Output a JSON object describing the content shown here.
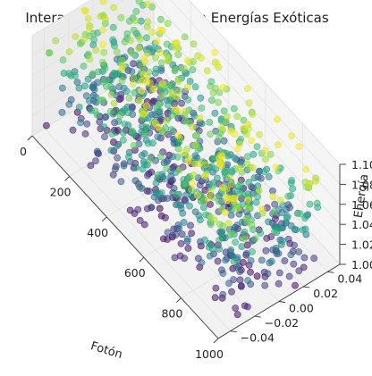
{
  "chart_data": {
    "type": "scatter",
    "projection": "3d",
    "title": "Interacción de Fotones con Energías Exóticas",
    "xlabel": "Fotón",
    "ylabel": "",
    "zlabel": "Energía",
    "xlim": [
      0,
      1000
    ],
    "ylim": [
      -0.05,
      0.05
    ],
    "zlim": [
      1.0,
      1.1
    ],
    "x_ticks": [
      "0",
      "200",
      "400",
      "600",
      "800",
      "1000"
    ],
    "y_ticks": [
      "−0.04",
      "−0.02",
      "0.00",
      "0.02",
      "0.04"
    ],
    "z_ticks": [
      "1.00",
      "1.02",
      "1.04",
      "1.06",
      "1.08",
      "1.10"
    ],
    "colormap": "viridis",
    "color_by": "z",
    "grid": true,
    "point_count": 1000,
    "marker_alpha": 0.55
  }
}
